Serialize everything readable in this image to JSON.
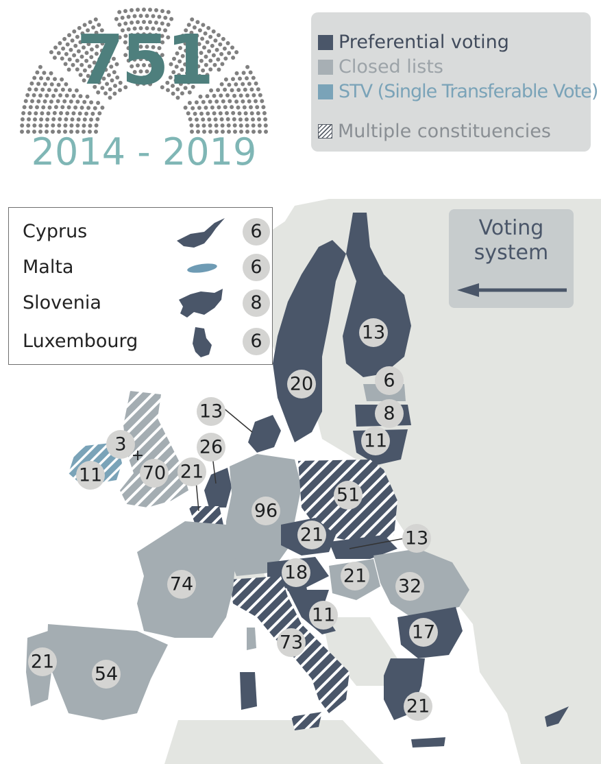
{
  "header": {
    "total_seats": "751",
    "period": "2014 - 2019"
  },
  "legend": {
    "items": [
      {
        "label": "Preferential voting",
        "color": "#4a5669"
      },
      {
        "label": "Closed lists",
        "color": "#a7afb4"
      },
      {
        "label": "STV (Single Transferable Vote)",
        "color": "#7aa3b8"
      }
    ],
    "multiple_label": "Multiple constituencies"
  },
  "small_states": [
    {
      "name": "Cyprus",
      "seats": "6",
      "icon": "cyprus-shape-icon"
    },
    {
      "name": "Malta",
      "seats": "6",
      "icon": "malta-shape-icon"
    },
    {
      "name": "Slovenia",
      "seats": "8",
      "icon": "slovenia-shape-icon"
    },
    {
      "name": "Luxembourg",
      "seats": "6",
      "icon": "luxembourg-shape-icon"
    }
  ],
  "voting_system_label_line1": "Voting",
  "voting_system_label_line2": "system",
  "countries": {
    "sweden": {
      "seats": "20",
      "system": "preferential"
    },
    "finland": {
      "seats": "13",
      "system": "preferential"
    },
    "estonia": {
      "seats": "6",
      "system": "closed"
    },
    "latvia": {
      "seats": "8",
      "system": "preferential"
    },
    "lithuania": {
      "seats": "11",
      "system": "preferential"
    },
    "denmark": {
      "seats": "13",
      "system": "preferential"
    },
    "netherlands": {
      "seats": "26",
      "system": "preferential"
    },
    "belgium": {
      "seats": "21",
      "system": "preferential-multiple"
    },
    "uk": {
      "seats": "70",
      "system": "closed-multiple"
    },
    "northern_ireland": {
      "seats": "3",
      "system": "stv"
    },
    "ireland": {
      "seats": "11",
      "system": "stv-multiple"
    },
    "germany": {
      "seats": "96",
      "system": "closed"
    },
    "poland": {
      "seats": "51",
      "system": "preferential-multiple"
    },
    "czechia": {
      "seats": "21",
      "system": "preferential"
    },
    "slovakia": {
      "seats": "13",
      "system": "preferential"
    },
    "austria": {
      "seats": "18",
      "system": "preferential"
    },
    "hungary": {
      "seats": "21",
      "system": "closed"
    },
    "romania": {
      "seats": "32",
      "system": "closed"
    },
    "bulgaria": {
      "seats": "17",
      "system": "preferential"
    },
    "croatia": {
      "seats": "11",
      "system": "preferential"
    },
    "italy": {
      "seats": "73",
      "system": "preferential-multiple"
    },
    "france": {
      "seats": "74",
      "system": "closed"
    },
    "spain": {
      "seats": "54",
      "system": "closed"
    },
    "portugal": {
      "seats": "21",
      "system": "closed"
    },
    "greece": {
      "seats": "21",
      "system": "preferential"
    }
  },
  "uk_plus": "+"
}
